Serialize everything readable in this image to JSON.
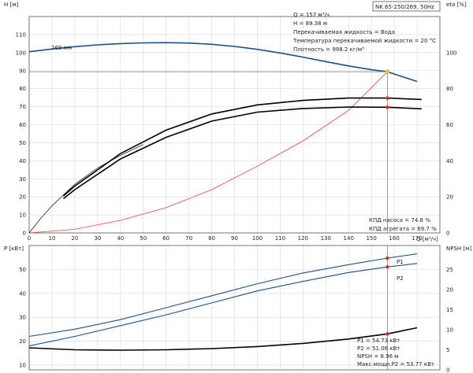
{
  "chart_data": [
    {
      "type": "line",
      "title": "NK 65-250/269, 50Hz",
      "xlabel": "Q [м³/ч]",
      "ylabel_left": "H [м]",
      "ylabel_right": "eta [%]",
      "x_ticks": [
        "0",
        "10",
        "20",
        "30",
        "40",
        "50",
        "60",
        "70",
        "80",
        "90",
        "100",
        "110",
        "120",
        "130",
        "140",
        "150",
        "160",
        "170"
      ],
      "xlim": [
        0,
        180
      ],
      "ylim_left": [
        0,
        120
      ],
      "ylim_right": [
        0,
        120
      ],
      "y_ticks_left": [
        "0",
        "10",
        "20",
        "30",
        "40",
        "50",
        "60",
        "70",
        "80",
        "90",
        "100",
        "110"
      ],
      "y_ticks_right": [
        "0",
        "20",
        "40",
        "60",
        "80",
        "100"
      ],
      "grid": true,
      "annotations": {
        "curve_label": "269 мм",
        "q": "Q = 157 м³/ч",
        "h": "H = 89.38 м",
        "liquid": "Перекачиваемая жидкость = Вода",
        "temp": "Температура перекачиваемой жидкости = 20 °C",
        "density": "Плотность = 998.2 кг/м³",
        "eff_pump": "КПД насоса = 74.8 %",
        "eff_unit": "КПД агрегата = 69.7 %"
      },
      "duty_point": {
        "q": 157,
        "h": 89.38
      },
      "series": [
        {
          "key": "H",
          "color": "#1f4e8c",
          "x": [
            0,
            10,
            20,
            30,
            40,
            50,
            60,
            70,
            80,
            90,
            100,
            110,
            120,
            130,
            140,
            150,
            157,
            170
          ],
          "y": [
            100.5,
            102,
            103.3,
            104.3,
            105,
            105.4,
            105.5,
            105.3,
            104.6,
            103.4,
            101.8,
            99.8,
            97.5,
            95,
            92.6,
            90.5,
            89.38,
            84
          ]
        },
        {
          "key": "system",
          "color": "#e8413a",
          "x": [
            0,
            20,
            40,
            60,
            80,
            100,
            120,
            140,
            157
          ],
          "y": [
            0,
            2,
            7,
            14,
            24,
            37,
            51,
            68,
            89.4
          ]
        },
        {
          "key": "eta_pump",
          "color": "#000000",
          "x": [
            15,
            20,
            40,
            60,
            80,
            100,
            120,
            140,
            157,
            172
          ],
          "y": [
            20.5,
            26,
            44,
            57,
            66,
            71,
            73.5,
            74.8,
            74.8,
            74
          ]
        },
        {
          "key": "eta_unit",
          "color": "#000000",
          "x": [
            15,
            20,
            40,
            60,
            80,
            100,
            120,
            140,
            157,
            172
          ],
          "y": [
            19,
            24,
            41,
            53,
            62,
            67,
            69,
            69.8,
            69.7,
            68.8
          ]
        },
        {
          "key": "eta_thin",
          "color": "#000000",
          "x": [
            0,
            5,
            10,
            15,
            20,
            30,
            40,
            50
          ],
          "y": [
            0,
            8,
            15,
            21,
            27,
            36,
            43,
            49
          ]
        }
      ]
    },
    {
      "type": "line",
      "ylabel_left": "P [кВт]",
      "ylabel_right": "NPSH [м]",
      "xlim": [
        0,
        180
      ],
      "ylim_left": [
        8,
        60
      ],
      "ylim_right": [
        0,
        31
      ],
      "y_ticks_left": [
        "10",
        "20",
        "30",
        "40",
        "50"
      ],
      "y_ticks_right": [
        "0",
        "5",
        "10",
        "15",
        "20",
        "25"
      ],
      "grid": true,
      "annotations": {
        "p1": "P1 = 54.73 кВт",
        "p2": "P2 = 51.06 кВт",
        "npsh": "NPSH = 8.96 м",
        "pmax": "Макс.мощн.P2 = 53.77 кВт"
      },
      "series": [
        {
          "key": "P1",
          "name": "P1",
          "color": "#1f4e8c",
          "axis": "left",
          "x": [
            0,
            20,
            40,
            60,
            80,
            100,
            120,
            140,
            157,
            170
          ],
          "y": [
            22,
            25,
            29,
            34,
            39,
            44,
            48.5,
            52,
            54.73,
            56.5
          ]
        },
        {
          "key": "P2",
          "name": "P2",
          "color": "#1f4e8c",
          "axis": "left",
          "x": [
            0,
            20,
            40,
            60,
            80,
            100,
            120,
            140,
            157,
            170
          ],
          "y": [
            18,
            22,
            26.5,
            31,
            36,
            41,
            45,
            48.7,
            51.06,
            52.5
          ]
        },
        {
          "key": "NPSH",
          "color": "#000000",
          "axis": "right",
          "x": [
            0,
            20,
            40,
            60,
            80,
            100,
            120,
            140,
            157,
            170
          ],
          "y": [
            5.5,
            5,
            4.9,
            5,
            5.3,
            5.8,
            6.6,
            7.7,
            8.96,
            10.5
          ]
        }
      ]
    }
  ]
}
